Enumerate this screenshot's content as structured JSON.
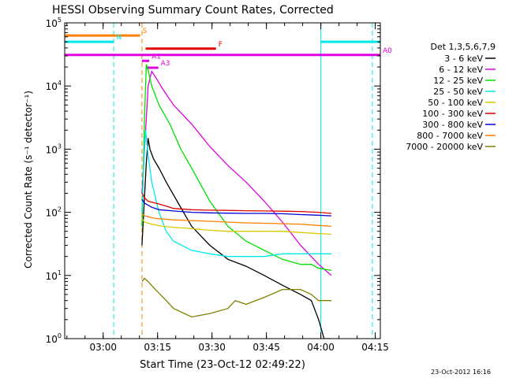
{
  "footer_timestamp": "23-Oct-2012 16:16",
  "colors": {
    "c3_6": "#000000",
    "c6_12": "#e000e0",
    "c12_25": "#00e000",
    "c25_50": "#00e8e8",
    "c50_100": "#d8c800",
    "c100_300": "#e00000",
    "c300_800": "#0000d8",
    "c800_7000": "#ff8000",
    "c7000_20000": "#808000"
  },
  "chart_data": {
    "type": "line",
    "title": "HESSI Observing Summary Count Rates, Corrected",
    "xlabel": "Start Time (23-Oct-12 02:49:22)",
    "ylabel": "Corrected Count Rate (s⁻¹ detector⁻¹)",
    "x_unit": "minutes after 02:49:22",
    "xlim": [
      0,
      87
    ],
    "ylim": [
      1,
      100000
    ],
    "y_scale": "log",
    "x_ticks": [
      {
        "x": 10.6,
        "label": "03:00"
      },
      {
        "x": 25.6,
        "label": "03:15"
      },
      {
        "x": 40.6,
        "label": "03:30"
      },
      {
        "x": 55.6,
        "label": "03:45"
      },
      {
        "x": 70.6,
        "label": "04:00"
      },
      {
        "x": 85.6,
        "label": "04:15"
      }
    ],
    "y_ticks": [
      {
        "v": 1,
        "base": "10",
        "exp": "0"
      },
      {
        "v": 10,
        "base": "10",
        "exp": "1"
      },
      {
        "v": 100,
        "base": "10",
        "exp": "2"
      },
      {
        "v": 1000,
        "base": "10",
        "exp": "3"
      },
      {
        "v": 10000,
        "base": "10",
        "exp": "4"
      },
      {
        "v": 100000,
        "base": "10",
        "exp": "5"
      }
    ],
    "legend": {
      "position": "right",
      "header": "Det 1,3,5,6,7,9",
      "entries": [
        "3 - 6 keV",
        "6 - 12 keV",
        "12 - 25 keV",
        "25 - 50 keV",
        "50 - 100 keV",
        "100 - 300 keV",
        "300 - 800 keV",
        "800 - 7000 keV",
        "7000 - 20000 keV"
      ]
    },
    "vertical_markers": [
      {
        "x": 13.5,
        "color": "#00e8e8",
        "style": "dashed"
      },
      {
        "x": 21.3,
        "color": "#ff8000",
        "style": "dashed"
      },
      {
        "x": 70.6,
        "color": "#00e8e8",
        "style": "solid"
      },
      {
        "x": 84.8,
        "color": "#00e8e8",
        "style": "dashed"
      }
    ],
    "flag_bars": [
      {
        "label": "S",
        "x0": 0,
        "x1": 20.8,
        "y": 63000,
        "color": "#ff8000"
      },
      {
        "label": "N",
        "x0": 0,
        "x1": 13.6,
        "y": 50000,
        "color": "#00e8e8"
      },
      {
        "label": "",
        "x0": 70.6,
        "x1": 87,
        "y": 50000,
        "color": "#00e8e8"
      },
      {
        "label": "F",
        "x0": 22.3,
        "x1": 41.7,
        "y": 39000,
        "color": "#e00000"
      },
      {
        "label": "A0",
        "x0": 0,
        "x1": 87,
        "y": 31000,
        "color": "#e000e0"
      },
      {
        "label": "A1",
        "x0": 21.3,
        "x1": 23.3,
        "y": 25000,
        "color": "#e000e0"
      },
      {
        "label": "A3",
        "x0": 22.3,
        "x1": 25.8,
        "y": 19500,
        "color": "#e000e0"
      }
    ],
    "series": [
      {
        "name": "3 - 6 keV",
        "color": "#000000",
        "x": [
          21.3,
          22.5,
          23.0,
          23.5,
          24.5,
          26.0,
          28.0,
          31.0,
          35.0,
          40.0,
          45.0,
          50.0,
          55.0,
          60.0,
          65.0,
          68.0,
          70.0,
          71.5,
          73.5
        ],
        "y": [
          30,
          600,
          1500,
          1000,
          700,
          500,
          300,
          150,
          60,
          30,
          18,
          14,
          10,
          7,
          5,
          4,
          2,
          1,
          1
        ]
      },
      {
        "name": "6 - 12 keV",
        "color": "#e000e0",
        "x": [
          21.3,
          22.5,
          23.0,
          24.0,
          25.0,
          27.0,
          30.0,
          35.0,
          40.0,
          45.0,
          50.0,
          55.0,
          60.0,
          65.0,
          70.0,
          73.5
        ],
        "y": [
          200,
          3000,
          10000,
          17000,
          14000,
          9000,
          5000,
          2500,
          1100,
          550,
          300,
          150,
          70,
          30,
          15,
          10
        ]
      },
      {
        "name": "12 - 25 keV",
        "color": "#00e000",
        "x": [
          21.3,
          22.0,
          22.5,
          23.0,
          24.0,
          26.0,
          29.0,
          32.0,
          35.0,
          40.0,
          45.0,
          50.0,
          55.0,
          60.0,
          65.0,
          68.0,
          70.0,
          73.5
        ],
        "y": [
          60,
          3000,
          22000,
          18000,
          10000,
          5000,
          2500,
          1000,
          500,
          150,
          60,
          35,
          25,
          18,
          15,
          15,
          13,
          12
        ]
      },
      {
        "name": "25 - 50 keV",
        "color": "#00e8e8",
        "x": [
          21.3,
          22.0,
          22.3,
          23.0,
          24.0,
          26.0,
          28.0,
          30.0,
          35.0,
          40.0,
          45.0,
          50.0,
          55.0,
          60.0,
          65.0,
          70.0,
          73.5
        ],
        "y": [
          100,
          1200,
          2000,
          800,
          300,
          100,
          50,
          35,
          25,
          22,
          20,
          20,
          20,
          22,
          22,
          22,
          22
        ]
      },
      {
        "name": "50 - 100 keV",
        "color": "#d8c800",
        "x": [
          21.3,
          22.0,
          24.0,
          27.0,
          30.0,
          35.0,
          40.0,
          45.0,
          50.0,
          55.0,
          60.0,
          65.0,
          70.0,
          73.5
        ],
        "y": [
          80,
          70,
          65,
          60,
          58,
          55,
          52,
          50,
          50,
          50,
          50,
          48,
          46,
          45
        ]
      },
      {
        "name": "100 - 300 keV",
        "color": "#e00000",
        "x": [
          21.3,
          22.0,
          23.0,
          25.0,
          28.0,
          30.0,
          35.0,
          40.0,
          45.0,
          50.0,
          55.0,
          60.0,
          65.0,
          70.0,
          73.5
        ],
        "y": [
          200,
          170,
          150,
          140,
          125,
          115,
          110,
          108,
          107,
          106,
          105,
          104,
          103,
          100,
          96
        ]
      },
      {
        "name": "300 - 800 keV",
        "color": "#0000d8",
        "x": [
          21.3,
          22.0,
          24.0,
          26.0,
          30.0,
          35.0,
          40.0,
          45.0,
          50.0,
          55.0,
          60.0,
          65.0,
          70.0,
          73.5
        ],
        "y": [
          160,
          140,
          120,
          110,
          105,
          100,
          98,
          97,
          96,
          96,
          95,
          92,
          90,
          88
        ]
      },
      {
        "name": "800 - 7000 keV",
        "color": "#ff8000",
        "x": [
          21.3,
          22.0,
          25.0,
          30.0,
          35.0,
          40.0,
          45.0,
          50.0,
          55.0,
          60.0,
          65.0,
          70.0,
          73.5
        ],
        "y": [
          95,
          88,
          80,
          76,
          74,
          72,
          70,
          68,
          67,
          66,
          65,
          62,
          60
        ]
      },
      {
        "name": "7000 - 20000 keV",
        "color": "#808000",
        "x": [
          21.3,
          22.0,
          23.0,
          25.0,
          28.0,
          30.0,
          33.0,
          35.0,
          40.0,
          45.0,
          47.0,
          50.0,
          55.0,
          60.0,
          65.0,
          68.0,
          70.0,
          73.5
        ],
        "y": [
          8,
          9,
          8,
          6,
          4,
          3,
          2.5,
          2.2,
          2.5,
          3,
          4,
          3.5,
          4.5,
          6,
          6,
          5,
          4,
          4
        ]
      }
    ]
  }
}
